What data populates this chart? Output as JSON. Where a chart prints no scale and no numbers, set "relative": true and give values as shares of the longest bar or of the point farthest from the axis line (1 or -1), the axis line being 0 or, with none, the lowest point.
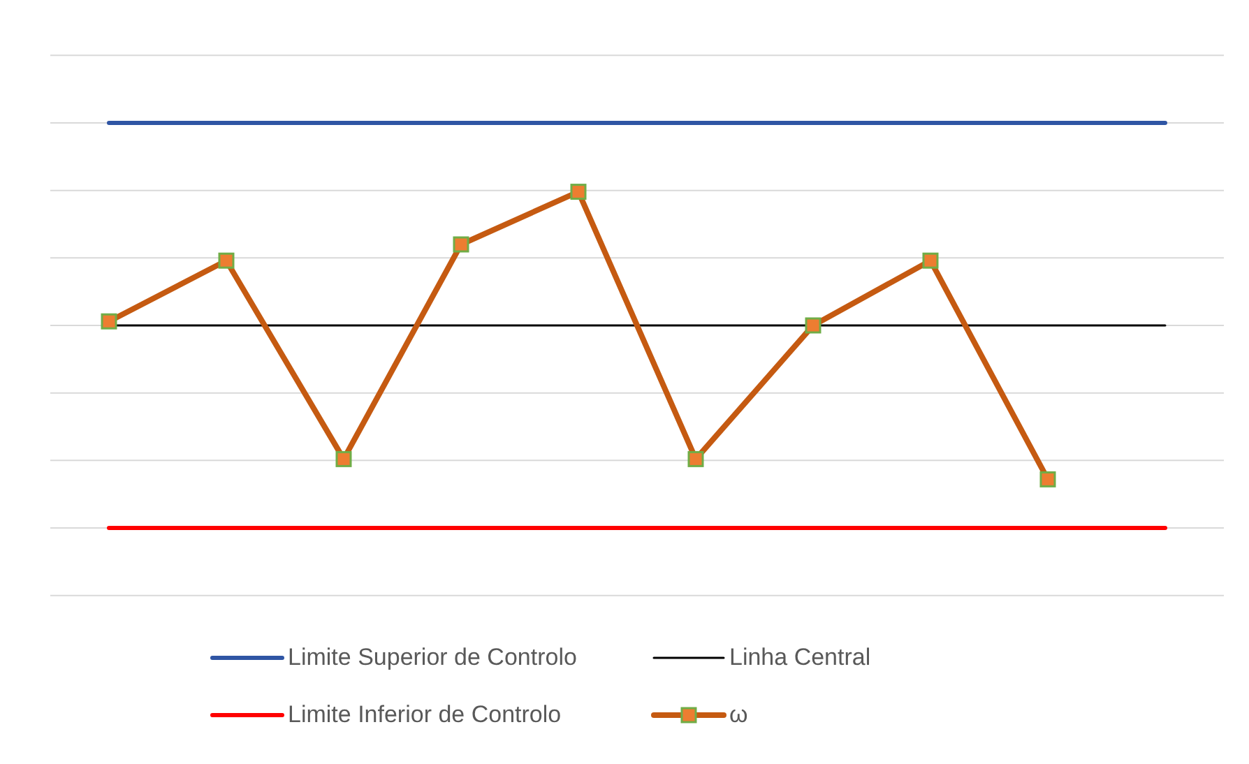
{
  "chart_data": {
    "type": "line",
    "relative": true,
    "grid": "y",
    "legend": "bottom",
    "categories": [
      null,
      null,
      null,
      null,
      null,
      null,
      null,
      null,
      null,
      null
    ],
    "series": [
      {
        "name": "Limite Superior de Controlo",
        "color": "#2f55a4",
        "marker": "none",
        "values": [
          1,
          1,
          1,
          1,
          1,
          1,
          1,
          1,
          1,
          1
        ]
      },
      {
        "name": "Linha Central",
        "color": "#000000",
        "marker": "none",
        "values": [
          0.5,
          0.5,
          0.5,
          0.5,
          0.5,
          0.5,
          0.5,
          0.5,
          0.5,
          0.5
        ]
      },
      {
        "name": "Limite Inferior de Controlo",
        "color": "#ff0000",
        "marker": "none",
        "values": [
          0,
          0,
          0,
          0,
          0,
          0,
          0,
          0,
          0,
          0
        ]
      },
      {
        "name": "ω",
        "color": "#c55a11",
        "marker": "square",
        "values": [
          0.51,
          0.66,
          0.17,
          0.7,
          0.83,
          0.17,
          0.5,
          0.66,
          0.12,
          null
        ]
      }
    ]
  }
}
